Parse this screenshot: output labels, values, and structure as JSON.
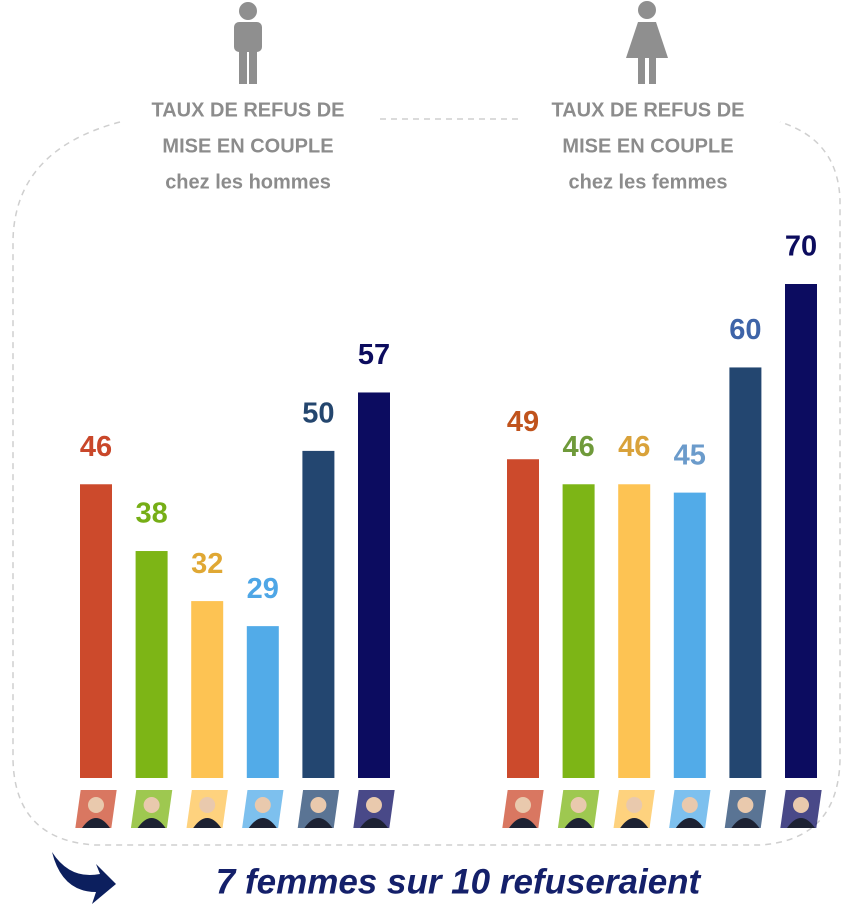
{
  "chart_data": [
    {
      "type": "bar",
      "title": [
        "TAUX DE REFUS DE",
        "MISE EN COUPLE",
        "chez les hommes"
      ],
      "categories": [
        null,
        null,
        null,
        null,
        null,
        null
      ],
      "values": [
        46,
        38,
        32,
        29,
        50,
        57
      ],
      "colors": [
        "#cc4a2c",
        "#7db516",
        "#fdc353",
        "#52abe8",
        "#234670",
        "#0c0c60"
      ],
      "label_colors": [
        "#c9472a",
        "#76ae16",
        "#e0a834",
        "#4ea6e6",
        "#24466e",
        "#0c0c5e"
      ],
      "ylim": [
        10.8,
        70
      ]
    },
    {
      "type": "bar",
      "title": [
        "TAUX DE REFUS DE",
        "MISE EN COUPLE",
        "chez les femmes"
      ],
      "categories": [
        null,
        null,
        null,
        null,
        null,
        null
      ],
      "values": [
        49,
        46,
        46,
        45,
        60,
        70
      ],
      "colors": [
        "#cc4a2c",
        "#7db516",
        "#fdc353",
        "#52abe8",
        "#234670",
        "#0c0c60"
      ],
      "label_colors": [
        "#c0531c",
        "#6f9a3a",
        "#d9a23a",
        "#6b9bcb",
        "#3e64a8",
        "#0c0c5e"
      ],
      "ylim": [
        10.8,
        70
      ]
    }
  ],
  "footer": "7 femmes sur 10 refuseraient"
}
